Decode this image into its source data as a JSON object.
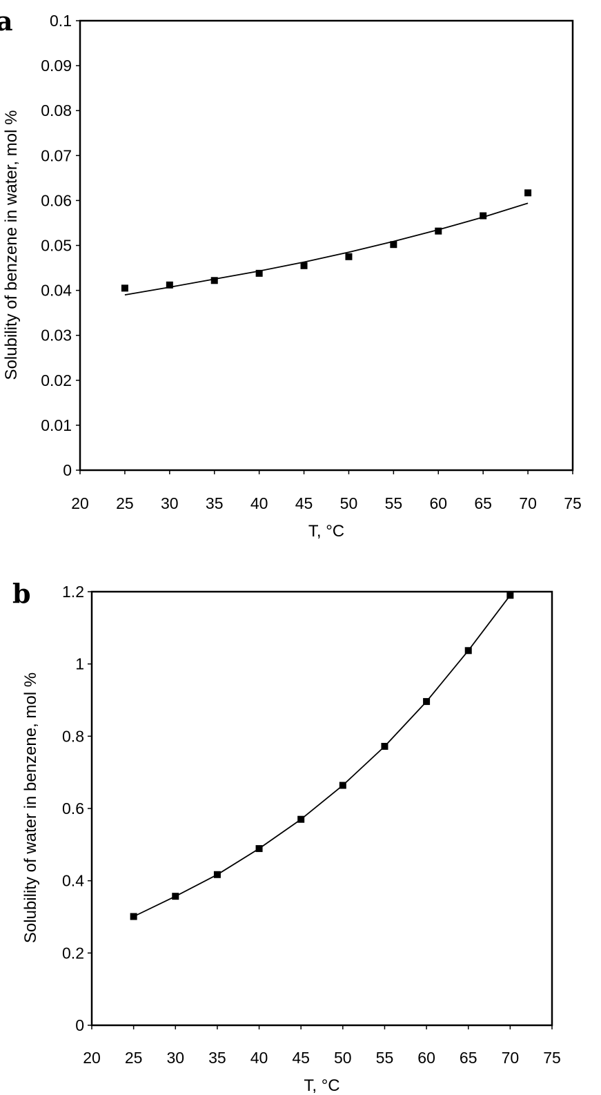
{
  "chart_data": [
    {
      "panel": "a",
      "type": "scatter",
      "xlabel": "T, °C",
      "ylabel": "Solubility of benzene in water, mol %",
      "xlim": [
        20,
        75
      ],
      "ylim": [
        0,
        0.1
      ],
      "xticks": [
        "20",
        "25",
        "30",
        "35",
        "40",
        "45",
        "50",
        "55",
        "60",
        "65",
        "70",
        "75"
      ],
      "yticks": [
        "0",
        "0.01",
        "0.02",
        "0.03",
        "0.04",
        "0.05",
        "0.06",
        "0.07",
        "0.08",
        "0.09",
        "0.1"
      ],
      "grid": false,
      "series": [
        {
          "marker": "square",
          "x": [
            25,
            30,
            35,
            40,
            45,
            50,
            55,
            60,
            65,
            70
          ],
          "y": [
            0.0405,
            0.0412,
            0.0422,
            0.0438,
            0.0455,
            0.0475,
            0.0502,
            0.0532,
            0.0566,
            0.0617
          ]
        },
        {
          "line": "fit",
          "x": [
            25,
            30,
            35,
            40,
            45,
            50,
            55,
            60,
            65,
            70
          ],
          "y": [
            0.039,
            0.0407,
            0.0425,
            0.0443,
            0.0463,
            0.0485,
            0.0509,
            0.0535,
            0.0563,
            0.0594
          ]
        }
      ]
    },
    {
      "panel": "b",
      "type": "scatter",
      "xlabel": "T, °C",
      "ylabel": "Solubility of water in benzene, mol %",
      "xlim": [
        20,
        75
      ],
      "ylim": [
        0,
        1.2
      ],
      "xticks": [
        "20",
        "25",
        "30",
        "35",
        "40",
        "45",
        "50",
        "55",
        "60",
        "65",
        "70",
        "75"
      ],
      "yticks": [
        "0",
        "0.2",
        "0.4",
        "0.6",
        "0.8",
        "1",
        "1.2"
      ],
      "grid": false,
      "series": [
        {
          "marker": "square",
          "x": [
            25,
            30,
            35,
            40,
            45,
            50,
            55,
            60,
            65,
            70
          ],
          "y": [
            0.301,
            0.357,
            0.417,
            0.489,
            0.57,
            0.664,
            0.772,
            0.896,
            1.037,
            1.19
          ]
        },
        {
          "line": "fit",
          "x": [
            25,
            30,
            35,
            40,
            45,
            50,
            55,
            60,
            65,
            70
          ],
          "y": [
            0.301,
            0.357,
            0.417,
            0.489,
            0.57,
            0.664,
            0.772,
            0.896,
            1.037,
            1.19
          ]
        }
      ]
    }
  ]
}
